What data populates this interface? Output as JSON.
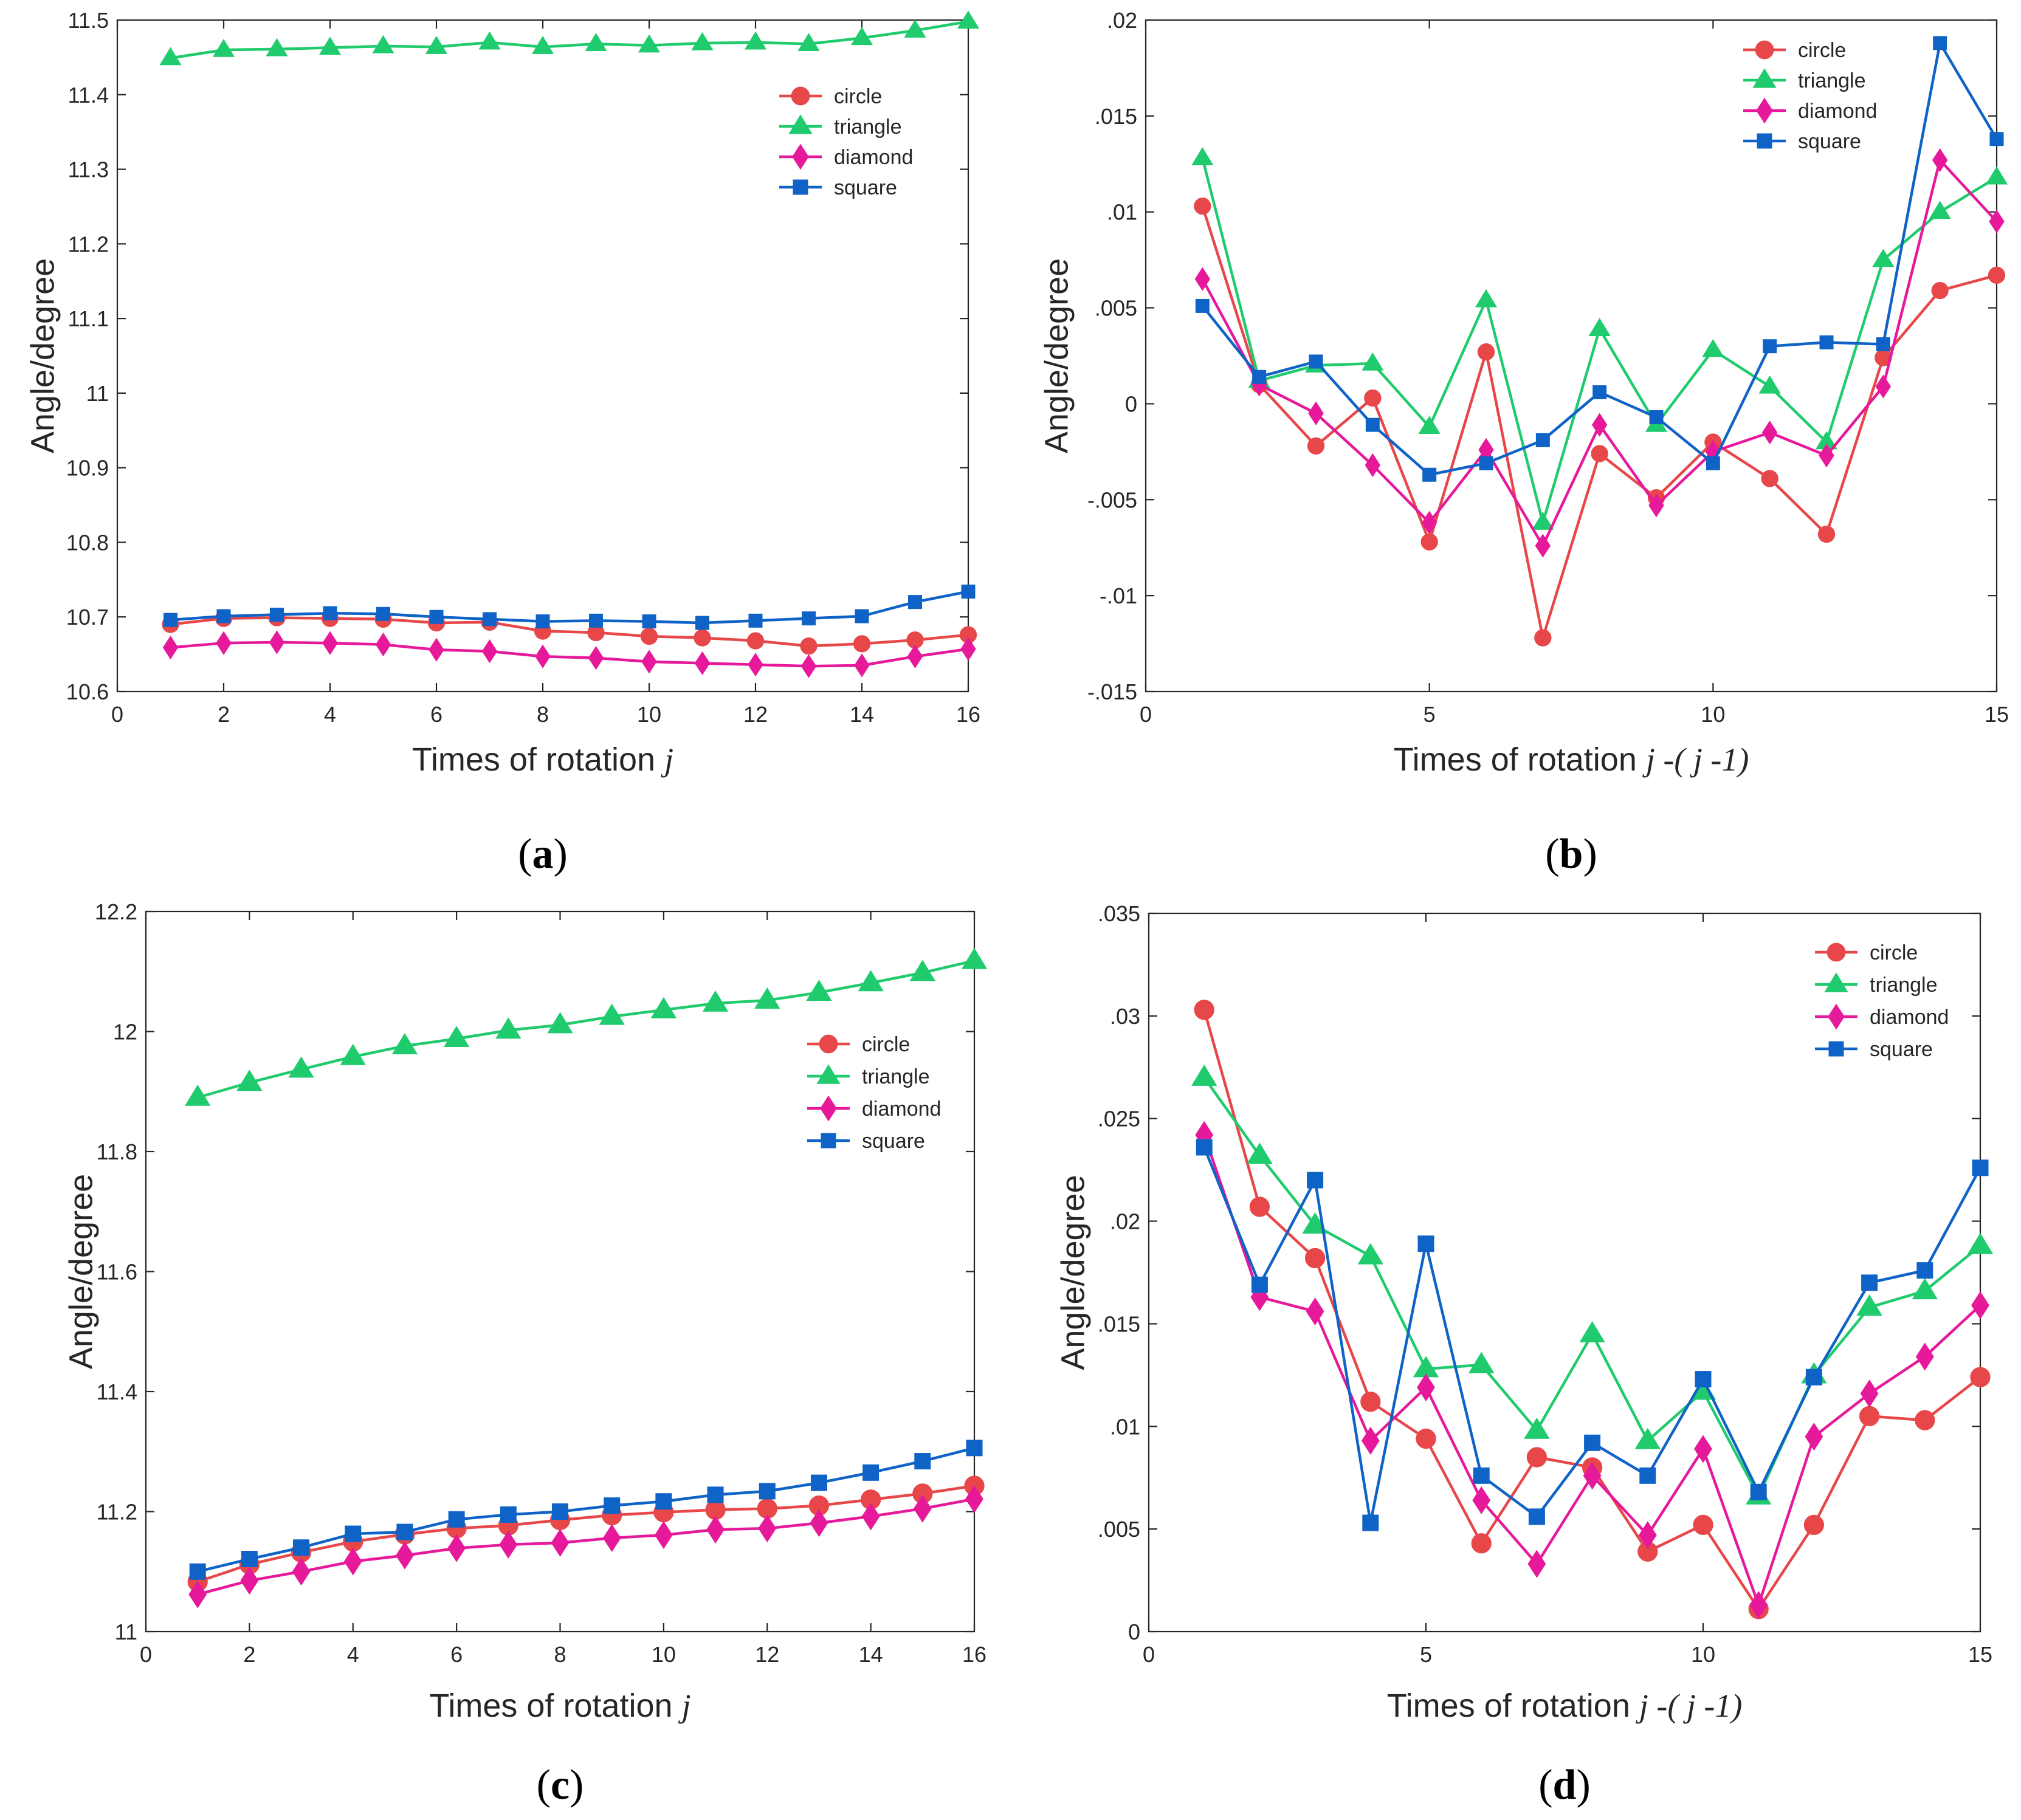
{
  "colors": {
    "circle": "#e8474a",
    "triangle": "#1fcb6c",
    "diamond": "#e6199b",
    "square": "#0f63c7"
  },
  "chart_data": [
    {
      "id": "a",
      "panel_label": "(a)",
      "type": "line",
      "xlabel_main": "Times of rotation",
      "xlabel_var": "j",
      "ylabel": "Angle/degree",
      "xlim": [
        0,
        16
      ],
      "ylim": [
        10.6,
        11.5
      ],
      "xticks": [
        0,
        2,
        4,
        6,
        8,
        10,
        12,
        14,
        16
      ],
      "yticks": [
        10.6,
        10.7,
        10.8,
        10.9,
        11,
        11.1,
        11.2,
        11.3,
        11.4,
        11.5
      ],
      "legend": "upper-right",
      "x": [
        1,
        2,
        3,
        4,
        5,
        6,
        7,
        8,
        9,
        10,
        11,
        12,
        13,
        14,
        15,
        16
      ],
      "series": [
        {
          "name": "circle",
          "marker": "circle",
          "values": [
            10.69,
            10.698,
            10.699,
            10.698,
            10.697,
            10.692,
            10.693,
            10.681,
            10.679,
            10.674,
            10.672,
            10.668,
            10.661,
            10.664,
            10.669,
            10.676
          ]
        },
        {
          "name": "triangle",
          "marker": "triangle",
          "values": [
            11.449,
            11.46,
            11.461,
            11.463,
            11.465,
            11.464,
            11.47,
            11.464,
            11.468,
            11.466,
            11.469,
            11.47,
            11.468,
            11.476,
            11.486,
            11.498
          ]
        },
        {
          "name": "diamond",
          "marker": "diamond",
          "values": [
            10.659,
            10.665,
            10.666,
            10.665,
            10.663,
            10.656,
            10.654,
            10.647,
            10.645,
            10.64,
            10.638,
            10.636,
            10.634,
            10.635,
            10.647,
            10.657
          ]
        },
        {
          "name": "square",
          "marker": "square",
          "values": [
            10.696,
            10.701,
            10.703,
            10.705,
            10.704,
            10.7,
            10.697,
            10.694,
            10.695,
            10.694,
            10.692,
            10.695,
            10.698,
            10.701,
            10.72,
            10.734
          ]
        }
      ]
    },
    {
      "id": "b",
      "panel_label": "(b)",
      "type": "line",
      "xlabel_main": "Times of rotation",
      "xlabel_var": "j -( j -1)",
      "ylabel": "Angle/degree",
      "xlim": [
        0,
        15
      ],
      "ylim": [
        -0.015,
        0.02
      ],
      "xticks": [
        0,
        5,
        10,
        15
      ],
      "yticks": [
        -0.015,
        -0.01,
        -0.005,
        0,
        0.005,
        0.01,
        0.015,
        0.02
      ],
      "legend": "top-right",
      "x": [
        1,
        2,
        3,
        4,
        5,
        6,
        7,
        8,
        9,
        10,
        11,
        12,
        13,
        14,
        15
      ],
      "series": [
        {
          "name": "circle",
          "marker": "circle",
          "values": [
            0.0103,
            0.001,
            -0.0022,
            0.0003,
            -0.0072,
            0.0027,
            -0.0122,
            -0.0026,
            -0.0049,
            -0.002,
            -0.0039,
            -0.0068,
            0.0024,
            0.0059,
            0.0067
          ]
        },
        {
          "name": "triangle",
          "marker": "triangle",
          "values": [
            0.0128,
            0.0012,
            0.002,
            0.0021,
            -0.0012,
            0.0054,
            -0.0062,
            0.0039,
            -0.0011,
            0.0028,
            0.0009,
            -0.002,
            0.0075,
            0.01,
            0.0118
          ]
        },
        {
          "name": "diamond",
          "marker": "diamond",
          "values": [
            0.0065,
            0.001,
            -0.0005,
            -0.0032,
            -0.0062,
            -0.0024,
            -0.0074,
            -0.0011,
            -0.0053,
            -0.0025,
            -0.0015,
            -0.0027,
            0.0009,
            0.0127,
            0.0095
          ]
        },
        {
          "name": "square",
          "marker": "square",
          "values": [
            0.0051,
            0.0014,
            0.0022,
            -0.0011,
            -0.0037,
            -0.0031,
            -0.0019,
            0.0006,
            -0.0007,
            -0.0031,
            0.003,
            0.0032,
            0.0031,
            0.0188,
            0.0138
          ]
        }
      ]
    },
    {
      "id": "c",
      "panel_label": "(c)",
      "type": "line",
      "xlabel_main": "Times of rotation",
      "xlabel_var": "j",
      "ylabel": "Angle/degree",
      "xlim": [
        0,
        16
      ],
      "ylim": [
        11,
        12.2
      ],
      "xticks": [
        0,
        2,
        4,
        6,
        8,
        10,
        12,
        14,
        16
      ],
      "yticks": [
        11,
        11.2,
        11.4,
        11.6,
        11.8,
        12,
        12.2
      ],
      "legend": "upper-right",
      "x": [
        1,
        2,
        3,
        4,
        5,
        6,
        7,
        8,
        9,
        10,
        11,
        12,
        13,
        14,
        15,
        16
      ],
      "series": [
        {
          "name": "circle",
          "marker": "circle",
          "values": [
            11.083,
            11.112,
            11.132,
            11.15,
            11.162,
            11.172,
            11.177,
            11.186,
            11.194,
            11.199,
            11.203,
            11.205,
            11.21,
            11.22,
            11.23,
            11.243
          ]
        },
        {
          "name": "triangle",
          "marker": "triangle",
          "values": [
            11.89,
            11.915,
            11.937,
            11.958,
            11.976,
            11.988,
            12.002,
            12.011,
            12.025,
            12.036,
            12.047,
            12.052,
            12.065,
            12.081,
            12.098,
            12.118
          ]
        },
        {
          "name": "diamond",
          "marker": "diamond",
          "values": [
            11.062,
            11.085,
            11.1,
            11.117,
            11.127,
            11.139,
            11.145,
            11.148,
            11.156,
            11.161,
            11.17,
            11.172,
            11.181,
            11.192,
            11.205,
            11.221
          ]
        },
        {
          "name": "square",
          "marker": "square",
          "values": [
            11.1,
            11.121,
            11.14,
            11.163,
            11.166,
            11.187,
            11.195,
            11.2,
            11.21,
            11.217,
            11.228,
            11.234,
            11.248,
            11.265,
            11.284,
            11.306
          ]
        }
      ]
    },
    {
      "id": "d",
      "panel_label": "(d)",
      "type": "line",
      "xlabel_main": "Times of rotation",
      "xlabel_var": "j -( j -1)",
      "ylabel": "Angle/degree",
      "xlim": [
        0,
        15
      ],
      "ylim": [
        0,
        0.035
      ],
      "xticks": [
        0,
        5,
        10,
        15
      ],
      "yticks": [
        0,
        0.005,
        0.01,
        0.015,
        0.02,
        0.025,
        0.03,
        0.035
      ],
      "legend": "top-right",
      "x": [
        1,
        2,
        3,
        4,
        5,
        6,
        7,
        8,
        9,
        10,
        11,
        12,
        13,
        14,
        15
      ],
      "series": [
        {
          "name": "circle",
          "marker": "circle",
          "values": [
            0.0303,
            0.0207,
            0.0182,
            0.0112,
            0.0094,
            0.0043,
            0.0085,
            0.008,
            0.0039,
            0.0052,
            0.0011,
            0.0052,
            0.0105,
            0.0103,
            0.0124
          ]
        },
        {
          "name": "triangle",
          "marker": "triangle",
          "values": [
            0.027,
            0.0232,
            0.0198,
            0.0183,
            0.0128,
            0.013,
            0.0098,
            0.0145,
            0.0093,
            0.0117,
            0.0066,
            0.0125,
            0.0158,
            0.0166,
            0.0188
          ]
        },
        {
          "name": "diamond",
          "marker": "diamond",
          "values": [
            0.0242,
            0.0163,
            0.0156,
            0.0093,
            0.0119,
            0.0064,
            0.0033,
            0.0076,
            0.0047,
            0.0089,
            0.0013,
            0.0095,
            0.0116,
            0.0134,
            0.0159
          ]
        },
        {
          "name": "square",
          "marker": "square",
          "values": [
            0.0236,
            0.0169,
            0.022,
            0.0053,
            0.0189,
            0.0076,
            0.0056,
            0.0092,
            0.0076,
            0.0123,
            0.0068,
            0.0124,
            0.017,
            0.0176,
            0.0226
          ]
        }
      ]
    }
  ]
}
